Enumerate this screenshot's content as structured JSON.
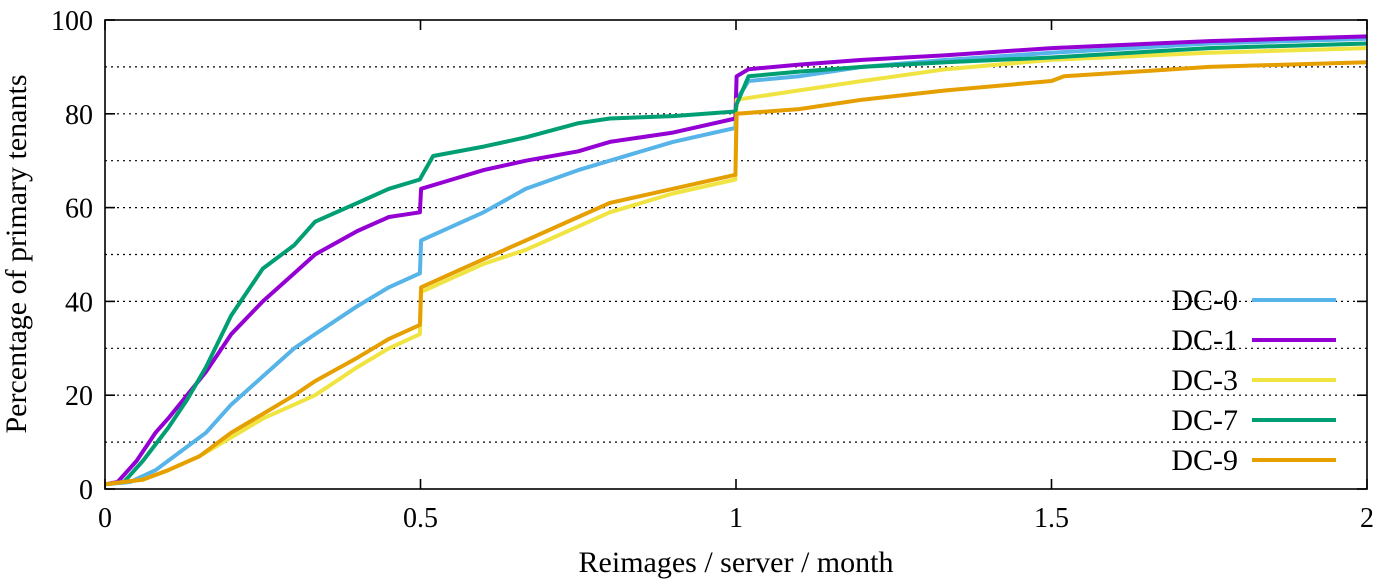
{
  "chart_data": {
    "type": "line",
    "title": "",
    "xlabel": "Reimages / server / month",
    "ylabel": "Percentage of primary tenants",
    "xlim": [
      0,
      2
    ],
    "ylim": [
      0,
      100
    ],
    "x_ticks": [
      0,
      0.5,
      1,
      1.5,
      2
    ],
    "x_tick_labels": [
      "0",
      "0.5",
      "1",
      "1.5",
      "2"
    ],
    "y_ticks": [
      0,
      20,
      40,
      60,
      80,
      100
    ],
    "y_tick_labels": [
      "0",
      "20",
      "40",
      "60",
      "80",
      "100"
    ],
    "grid": "horizontal dotted",
    "legend_position": "bottom-right",
    "series": [
      {
        "name": "DC-0",
        "color": "#56b4e9",
        "points": [
          [
            0,
            1
          ],
          [
            0.04,
            1.5
          ],
          [
            0.08,
            4
          ],
          [
            0.12,
            8
          ],
          [
            0.16,
            12
          ],
          [
            0.2,
            18
          ],
          [
            0.25,
            24
          ],
          [
            0.3,
            30
          ],
          [
            0.333,
            33
          ],
          [
            0.4,
            39
          ],
          [
            0.45,
            43
          ],
          [
            0.499,
            46
          ],
          [
            0.501,
            53
          ],
          [
            0.55,
            56
          ],
          [
            0.6,
            59
          ],
          [
            0.667,
            64
          ],
          [
            0.75,
            68
          ],
          [
            0.8,
            70
          ],
          [
            0.9,
            74
          ],
          [
            0.999,
            77
          ],
          [
            1.001,
            83
          ],
          [
            1.02,
            87
          ],
          [
            1.1,
            88
          ],
          [
            1.2,
            90
          ],
          [
            1.333,
            91.5
          ],
          [
            1.5,
            93
          ],
          [
            1.75,
            95
          ],
          [
            2,
            96
          ]
        ]
      },
      {
        "name": "DC-1",
        "color": "#9400d3",
        "points": [
          [
            0,
            1
          ],
          [
            0.02,
            1.5
          ],
          [
            0.05,
            6
          ],
          [
            0.08,
            12
          ],
          [
            0.1,
            15
          ],
          [
            0.13,
            20
          ],
          [
            0.16,
            25
          ],
          [
            0.2,
            33
          ],
          [
            0.25,
            40
          ],
          [
            0.3,
            46
          ],
          [
            0.333,
            50
          ],
          [
            0.4,
            55
          ],
          [
            0.45,
            58
          ],
          [
            0.499,
            59
          ],
          [
            0.501,
            64
          ],
          [
            0.55,
            66
          ],
          [
            0.6,
            68
          ],
          [
            0.667,
            70
          ],
          [
            0.75,
            72
          ],
          [
            0.8,
            74
          ],
          [
            0.9,
            76
          ],
          [
            0.999,
            79
          ],
          [
            1.001,
            88
          ],
          [
            1.02,
            89.5
          ],
          [
            1.1,
            90.5
          ],
          [
            1.2,
            91.5
          ],
          [
            1.333,
            92.5
          ],
          [
            1.5,
            94
          ],
          [
            1.75,
            95.5
          ],
          [
            2,
            96.5
          ]
        ]
      },
      {
        "name": "DC-3",
        "color": "#f0e442",
        "points": [
          [
            0,
            1
          ],
          [
            0.06,
            2
          ],
          [
            0.1,
            4
          ],
          [
            0.15,
            7
          ],
          [
            0.2,
            11
          ],
          [
            0.25,
            15
          ],
          [
            0.3,
            18
          ],
          [
            0.333,
            20
          ],
          [
            0.4,
            26
          ],
          [
            0.45,
            30
          ],
          [
            0.499,
            33
          ],
          [
            0.501,
            42
          ],
          [
            0.55,
            45
          ],
          [
            0.6,
            48
          ],
          [
            0.667,
            51
          ],
          [
            0.75,
            56
          ],
          [
            0.8,
            59
          ],
          [
            0.9,
            63
          ],
          [
            0.999,
            66
          ],
          [
            1.001,
            83
          ],
          [
            1.1,
            85
          ],
          [
            1.2,
            87
          ],
          [
            1.333,
            89.5
          ],
          [
            1.5,
            91.5
          ],
          [
            1.75,
            93
          ],
          [
            2,
            94
          ]
        ]
      },
      {
        "name": "DC-7",
        "color": "#009e73",
        "points": [
          [
            0,
            1
          ],
          [
            0.03,
            1.5
          ],
          [
            0.06,
            6
          ],
          [
            0.1,
            13
          ],
          [
            0.13,
            19
          ],
          [
            0.16,
            26
          ],
          [
            0.2,
            37
          ],
          [
            0.25,
            47
          ],
          [
            0.3,
            52
          ],
          [
            0.333,
            57
          ],
          [
            0.4,
            61
          ],
          [
            0.45,
            64
          ],
          [
            0.499,
            66
          ],
          [
            0.501,
            66.5
          ],
          [
            0.52,
            71
          ],
          [
            0.6,
            73
          ],
          [
            0.667,
            75
          ],
          [
            0.75,
            78
          ],
          [
            0.8,
            79
          ],
          [
            0.9,
            79.5
          ],
          [
            0.999,
            80.5
          ],
          [
            1.001,
            82
          ],
          [
            1.02,
            88
          ],
          [
            1.1,
            89
          ],
          [
            1.2,
            90
          ],
          [
            1.333,
            91
          ],
          [
            1.5,
            92
          ],
          [
            1.75,
            94
          ],
          [
            2,
            95
          ]
        ]
      },
      {
        "name": "DC-9",
        "color": "#e69f00",
        "points": [
          [
            0,
            1
          ],
          [
            0.06,
            2
          ],
          [
            0.1,
            4
          ],
          [
            0.15,
            7
          ],
          [
            0.2,
            12
          ],
          [
            0.25,
            16
          ],
          [
            0.3,
            20
          ],
          [
            0.333,
            23
          ],
          [
            0.4,
            28
          ],
          [
            0.45,
            32
          ],
          [
            0.499,
            35
          ],
          [
            0.501,
            43
          ],
          [
            0.55,
            46
          ],
          [
            0.6,
            49
          ],
          [
            0.667,
            53
          ],
          [
            0.75,
            58
          ],
          [
            0.8,
            61
          ],
          [
            0.9,
            64
          ],
          [
            0.999,
            67
          ],
          [
            1.001,
            80
          ],
          [
            1.1,
            81
          ],
          [
            1.2,
            83
          ],
          [
            1.333,
            85
          ],
          [
            1.5,
            87
          ],
          [
            1.52,
            88
          ],
          [
            1.75,
            90
          ],
          [
            2,
            91
          ]
        ]
      }
    ]
  }
}
